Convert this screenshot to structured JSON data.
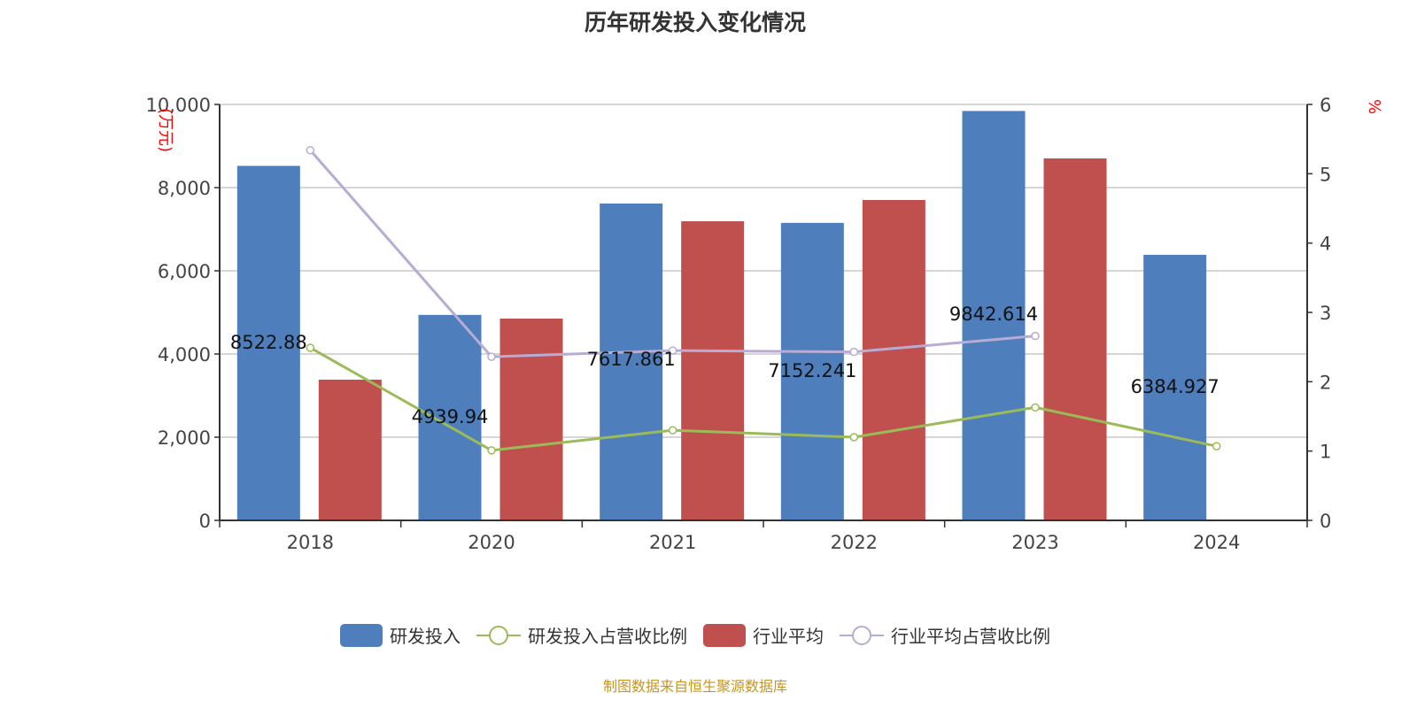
{
  "chart_data": {
    "type": "bar",
    "title": "历年研发投入变化情况",
    "categories": [
      "2018",
      "2020",
      "2021",
      "2022",
      "2023",
      "2024"
    ],
    "ylabel": "(万元)",
    "y2label": "%",
    "ylim": [
      0,
      10000
    ],
    "y2lim": [
      0,
      6
    ],
    "yticks": [
      "0",
      "2,000",
      "4,000",
      "6,000",
      "8,000",
      "10,000"
    ],
    "y2ticks": [
      "0",
      "1",
      "2",
      "3",
      "4",
      "5",
      "6"
    ],
    "grid": true,
    "legend_position": "bottom",
    "series": [
      {
        "name": "研发投入",
        "type": "bar",
        "axis": "left",
        "color": "#4e7fbc",
        "values": [
          8522.88,
          4939.94,
          7617.861,
          7152.241,
          9842.614,
          6384.927
        ],
        "labels": [
          "8522.88",
          "4939.94",
          "7617.861",
          "7152.241",
          "9842.614",
          "6384.927"
        ]
      },
      {
        "name": "研发投入占营收比例",
        "type": "line",
        "axis": "right",
        "color": "#9bbb59",
        "values": [
          2.49,
          1.01,
          1.3,
          1.2,
          1.63,
          1.07
        ]
      },
      {
        "name": "行业平均",
        "type": "bar",
        "axis": "left",
        "color": "#c0504d",
        "values": [
          3383,
          4851,
          7191,
          7702,
          8702,
          null
        ]
      },
      {
        "name": "行业平均占营收比例",
        "type": "line",
        "axis": "right",
        "color": "#b8acd4",
        "values": [
          5.34,
          2.36,
          2.45,
          2.43,
          2.66,
          null
        ]
      }
    ]
  },
  "source": "制图数据来自恒生聚源数据库"
}
